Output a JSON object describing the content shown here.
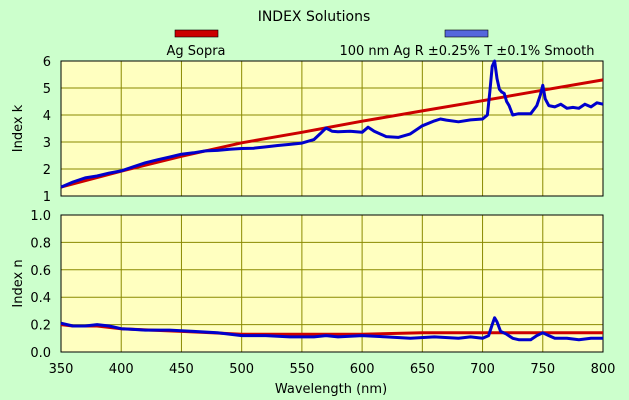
{
  "chart_data": [
    {
      "type": "line",
      "title": "INDEX Solutions",
      "xlabel": "",
      "ylabel": "Index k",
      "xlim": [
        350,
        800
      ],
      "ylim": [
        1,
        6
      ],
      "x_ticks": [
        "350",
        "400",
        "450",
        "500",
        "550",
        "600",
        "650",
        "700",
        "750",
        "800"
      ],
      "y_ticks": [
        "1",
        "2",
        "3",
        "4",
        "5",
        "6"
      ],
      "grid": true,
      "legend_position": "top",
      "series": [
        {
          "name": "Ag Sopra",
          "color": "#cc0000",
          "x": [
            350,
            400,
            450,
            500,
            550,
            600,
            650,
            700,
            750,
            800
          ],
          "values": [
            1.33,
            1.92,
            2.47,
            2.97,
            3.36,
            3.77,
            4.15,
            4.53,
            4.92,
            5.3
          ]
        },
        {
          "name": "100 nm Ag R ±0.25% T ±0.1% Smooth",
          "color": "#0000cc",
          "x": [
            350,
            360,
            370,
            380,
            390,
            400,
            410,
            420,
            430,
            440,
            450,
            460,
            470,
            480,
            490,
            500,
            510,
            520,
            530,
            540,
            550,
            560,
            565,
            570,
            575,
            580,
            590,
            600,
            605,
            610,
            620,
            630,
            640,
            650,
            660,
            665,
            670,
            680,
            690,
            700,
            704,
            706,
            708,
            710,
            712,
            714,
            716,
            718,
            720,
            722,
            725,
            730,
            740,
            745,
            748,
            750,
            752,
            755,
            760,
            765,
            770,
            775,
            780,
            785,
            790,
            795,
            800
          ],
          "values": [
            1.33,
            1.52,
            1.67,
            1.74,
            1.85,
            1.93,
            2.08,
            2.23,
            2.34,
            2.44,
            2.55,
            2.6,
            2.67,
            2.69,
            2.73,
            2.76,
            2.77,
            2.82,
            2.87,
            2.91,
            2.96,
            3.09,
            3.3,
            3.52,
            3.4,
            3.38,
            3.4,
            3.36,
            3.55,
            3.4,
            3.2,
            3.17,
            3.3,
            3.6,
            3.78,
            3.85,
            3.81,
            3.75,
            3.82,
            3.85,
            4.0,
            4.85,
            5.8,
            6.0,
            5.35,
            4.95,
            4.85,
            4.8,
            4.5,
            4.35,
            4.0,
            4.05,
            4.05,
            4.35,
            4.75,
            5.1,
            4.6,
            4.35,
            4.3,
            4.4,
            4.25,
            4.28,
            4.25,
            4.4,
            4.3,
            4.45,
            4.4
          ]
        }
      ]
    },
    {
      "type": "line",
      "title": "",
      "xlabel": "Wavelength (nm)",
      "ylabel": "Index n",
      "xlim": [
        350,
        800
      ],
      "ylim": [
        0.0,
        1.0
      ],
      "x_ticks": [
        "350",
        "400",
        "450",
        "500",
        "550",
        "600",
        "650",
        "700",
        "750",
        "800"
      ],
      "y_ticks": [
        "0.0",
        "0.2",
        "0.4",
        "0.6",
        "0.8",
        "1.0"
      ],
      "grid": true,
      "series": [
        {
          "name": "Ag Sopra",
          "color": "#cc0000",
          "x": [
            350,
            360,
            370,
            380,
            400,
            425,
            450,
            475,
            500,
            550,
            600,
            650,
            700,
            750,
            800
          ],
          "values": [
            0.2,
            0.19,
            0.19,
            0.19,
            0.17,
            0.16,
            0.15,
            0.14,
            0.13,
            0.13,
            0.13,
            0.14,
            0.14,
            0.14,
            0.14
          ]
        },
        {
          "name": "100 nm Ag R ±0.25% T ±0.1% Smooth",
          "color": "#0000cc",
          "x": [
            350,
            360,
            370,
            380,
            390,
            400,
            420,
            440,
            460,
            480,
            500,
            520,
            540,
            560,
            570,
            580,
            600,
            620,
            640,
            660,
            680,
            690,
            700,
            705,
            708,
            710,
            712,
            715,
            720,
            725,
            730,
            740,
            745,
            750,
            755,
            760,
            770,
            780,
            790,
            800
          ],
          "values": [
            0.21,
            0.19,
            0.19,
            0.2,
            0.19,
            0.17,
            0.16,
            0.16,
            0.15,
            0.14,
            0.12,
            0.12,
            0.11,
            0.11,
            0.12,
            0.11,
            0.12,
            0.11,
            0.1,
            0.11,
            0.1,
            0.11,
            0.1,
            0.12,
            0.2,
            0.25,
            0.22,
            0.15,
            0.13,
            0.1,
            0.09,
            0.09,
            0.12,
            0.14,
            0.12,
            0.1,
            0.1,
            0.09,
            0.1,
            0.1
          ]
        }
      ]
    }
  ]
}
